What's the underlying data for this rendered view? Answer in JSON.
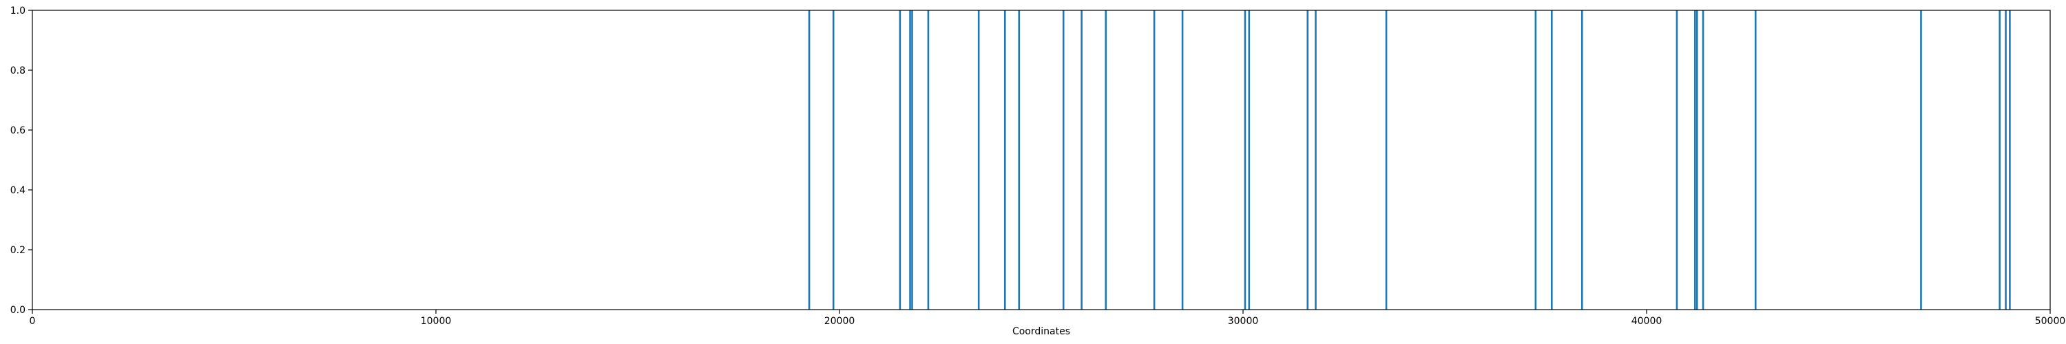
{
  "chart_data": {
    "type": "bar",
    "title": "",
    "xlabel": "Coordinates",
    "ylabel": "",
    "xlim": [
      0,
      50000
    ],
    "ylim": [
      0.0,
      1.0
    ],
    "x_ticks": [
      0,
      10000,
      20000,
      30000,
      40000,
      50000
    ],
    "x_tick_labels": [
      "0",
      "10000",
      "20000",
      "30000",
      "40000",
      "50000"
    ],
    "y_ticks": [
      0.0,
      0.2,
      0.4,
      0.6,
      0.8,
      1.0
    ],
    "y_tick_labels": [
      "0.0",
      "0.2",
      "0.4",
      "0.6",
      "0.8",
      "1.0"
    ],
    "grid": false,
    "legend": "none",
    "bar_color": "#1f77b4",
    "x": [
      19250,
      19850,
      21500,
      21750,
      21800,
      22200,
      23450,
      24100,
      24450,
      25550,
      26000,
      26600,
      27800,
      28500,
      30050,
      30150,
      31600,
      31800,
      33550,
      37250,
      37650,
      38400,
      40750,
      41200,
      41250,
      41400,
      42700,
      46800,
      48750,
      48900,
      49000
    ],
    "values": [
      1,
      1,
      1,
      1,
      1,
      1,
      1,
      1,
      1,
      1,
      1,
      1,
      1,
      1,
      1,
      1,
      1,
      1,
      1,
      1,
      1,
      1,
      1,
      1,
      1,
      1,
      1,
      1,
      1,
      1,
      1
    ]
  }
}
